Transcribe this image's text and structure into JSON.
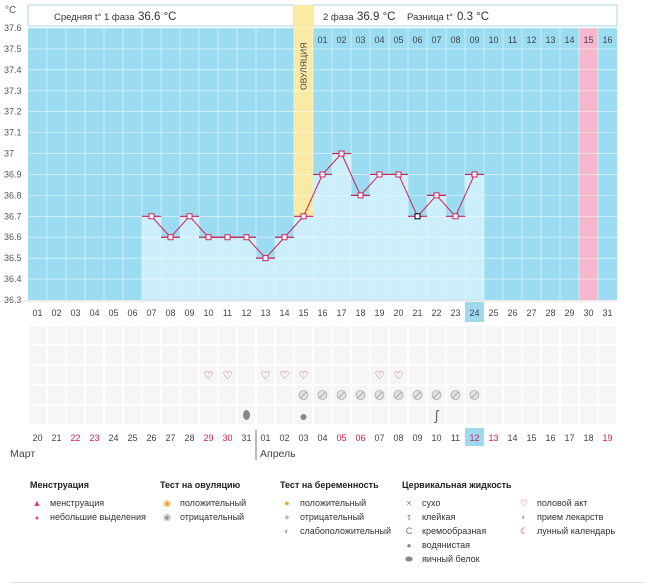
{
  "chart_data": {
    "type": "line",
    "title": "",
    "ylabel": "°C",
    "ylim": [
      36.3,
      37.6
    ],
    "y_ticks": [
      "36.3",
      "36.4",
      "36.5",
      "36.6",
      "36.7",
      "36.8",
      "36.9",
      "37",
      "37.1",
      "37.2",
      "37.3",
      "37.4",
      "37.5",
      "37.6"
    ],
    "day_labels": [
      "01",
      "02",
      "03",
      "04",
      "05",
      "06",
      "07",
      "08",
      "09",
      "10",
      "11",
      "12",
      "13",
      "14",
      "15",
      "16",
      "17",
      "18",
      "19",
      "20",
      "21",
      "22",
      "23",
      "24",
      "25",
      "26",
      "27",
      "28",
      "29",
      "30",
      "31"
    ],
    "temperatures": [
      null,
      null,
      null,
      null,
      null,
      null,
      36.7,
      36.6,
      36.7,
      36.6,
      36.6,
      36.6,
      36.5,
      36.6,
      36.7,
      36.9,
      37.0,
      36.8,
      36.9,
      36.9,
      36.7,
      36.8,
      36.7,
      36.9,
      null,
      null,
      null,
      null,
      null,
      null,
      null
    ],
    "highlighted_day_index": 20,
    "current_day_index": 23,
    "phase1_label": "Средняя t° 1 фаза",
    "phase1_value": "36.6 °C",
    "phase2_label": "2 фаза",
    "phase2_value": "36.9 °C",
    "diff_label": "Разница t°",
    "diff_value": "0.3 °C",
    "ovulation_label": "ОВУЛЯЦИЯ",
    "ovulation_day_index": 14,
    "phase2_day_labels": [
      "01",
      "02",
      "03",
      "04",
      "05",
      "06",
      "07",
      "08",
      "09",
      "10",
      "11",
      "12",
      "13",
      "14",
      "15",
      "16"
    ],
    "menstruation_expected_index": 29,
    "calendar_dates": [
      "20",
      "21",
      "22",
      "23",
      "24",
      "25",
      "26",
      "27",
      "28",
      "29",
      "30",
      "31",
      "01",
      "02",
      "03",
      "04",
      "05",
      "06",
      "07",
      "08",
      "09",
      "10",
      "11",
      "12",
      "13",
      "14",
      "15",
      "16",
      "17",
      "18",
      "19"
    ],
    "weekend_indices": [
      2,
      3,
      9,
      10,
      16,
      17,
      23,
      24,
      30
    ],
    "today_calendar_index": 23,
    "month_start_index": 12,
    "month1": "Март",
    "month2": "Апрель",
    "heart_days": [
      9,
      10,
      12,
      13,
      14,
      18,
      19
    ],
    "pill_days": [
      14,
      15,
      16,
      17,
      18,
      19,
      20,
      21,
      22,
      23
    ],
    "eggwhite_days": [
      11
    ],
    "drop_days": [
      14
    ],
    "creamy_days": [
      21
    ],
    "colors": {
      "sky": "#9bdcf2",
      "grid": "#ffffff",
      "bar": "#cdeefb",
      "bar_line": "#b6dff1",
      "line": "#cc2255",
      "ovulation": "#fbeaa3",
      "expected": "#f6b6cb",
      "today": "#9fd9ef",
      "weekend": "#cc2255"
    }
  },
  "legend": {
    "menstruation": {
      "title": "Менструация",
      "items": [
        "менструация",
        "небольшие выделения"
      ]
    },
    "ovulation_test": {
      "title": "Тест на овуляцию",
      "items": [
        "положительный",
        "отрицательный"
      ]
    },
    "pregnancy_test": {
      "title": "Тест на беременность",
      "items": [
        "положительный",
        "отрицательный",
        "слабоположительный"
      ]
    },
    "cervical": {
      "title": "Цервикальная жидкость",
      "items": [
        "сухо",
        "клейкая",
        "кремообразная",
        "водянистая",
        "яичный белок"
      ]
    },
    "other": {
      "items": [
        "половой акт",
        "прием лекарств",
        "лунный календарь"
      ]
    }
  }
}
